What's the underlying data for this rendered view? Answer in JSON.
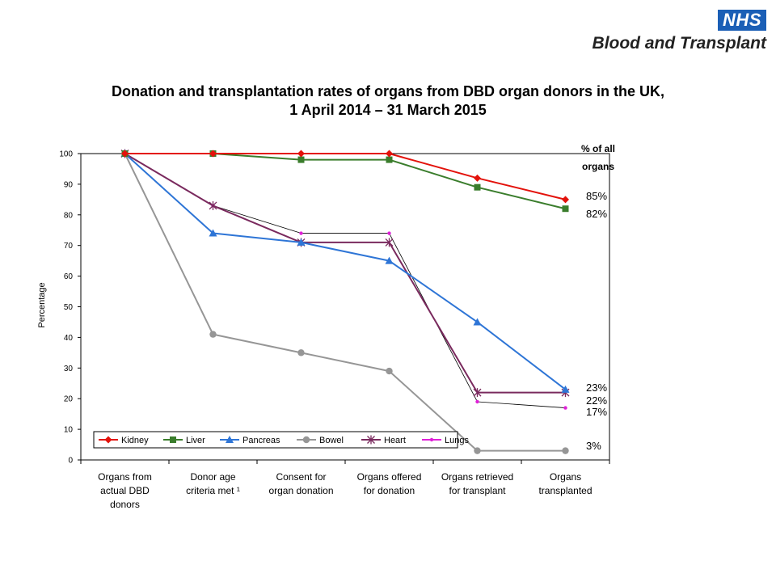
{
  "logo": {
    "badge": "NHS",
    "text": "Blood and Transplant"
  },
  "title": {
    "line1": "Donation and transplantation rates of organs from DBD organ donors in the UK,",
    "line2": "1 April 2014 –  31 March 2015"
  },
  "side_header": [
    "% of all",
    "organs"
  ],
  "side_labels": [
    {
      "text": "85%",
      "value": 85
    },
    {
      "text": "82%",
      "value": 82
    },
    {
      "text": "23%",
      "value": 23
    },
    {
      "text": "22%",
      "value": 22
    },
    {
      "text": "17%",
      "value": 17
    },
    {
      "text": "3%",
      "value": 3
    }
  ],
  "chart_data": {
    "type": "line",
    "title": "Donation and transplantation rates of organs from DBD organ donors in the UK, 1 April 2014 –  31 March 2015",
    "ylabel": "Percentage",
    "xlabel": "",
    "ylim": [
      0,
      100
    ],
    "yticks": [
      0,
      10,
      20,
      30,
      40,
      50,
      60,
      70,
      80,
      90,
      100
    ],
    "grid": false,
    "legend_position": "bottom-left",
    "categories": [
      [
        "Organs from",
        "actual DBD",
        "donors"
      ],
      [
        "Donor age",
        "criteria met ¹"
      ],
      [
        "Consent for",
        "organ donation"
      ],
      [
        "Organs offered",
        "for donation"
      ],
      [
        "Organs retrieved",
        "for transplant"
      ],
      [
        "Organs",
        "transplanted"
      ]
    ],
    "series": [
      {
        "name": "Kidney",
        "color": "#e3120b",
        "marker": "diamond",
        "values": [
          100,
          100,
          100,
          100,
          92,
          85
        ]
      },
      {
        "name": "Liver",
        "color": "#3a7d2c",
        "marker": "square",
        "values": [
          100,
          100,
          98,
          98,
          89,
          82
        ]
      },
      {
        "name": "Pancreas",
        "color": "#2e75d6",
        "marker": "triangle",
        "values": [
          100,
          74,
          71,
          65,
          45,
          23
        ]
      },
      {
        "name": "Bowel",
        "color": "#969696",
        "marker": "circle",
        "values": [
          100,
          41,
          35,
          29,
          3,
          3
        ]
      },
      {
        "name": "Heart",
        "color": "#7a2a5e",
        "marker": "star",
        "values": [
          100,
          83,
          71,
          71,
          22,
          22
        ]
      },
      {
        "name": "Lungs",
        "color": "#e020d8",
        "marker": "dot",
        "values": [
          100,
          83,
          74,
          74,
          19,
          17
        ]
      }
    ]
  }
}
